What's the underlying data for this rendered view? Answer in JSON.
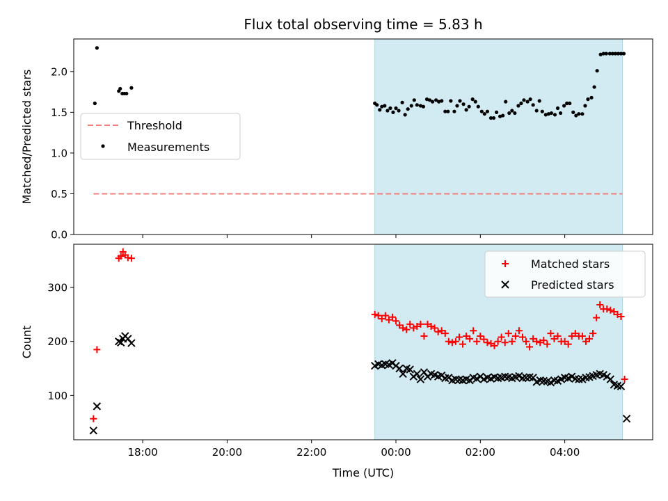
{
  "figure": {
    "title": "Flux total observing time = 5.83 h"
  },
  "colors": {
    "threshold": "#f08080",
    "measurement": "#000000",
    "matched": "#ff0000",
    "predicted": "#000000",
    "shade": "#add8e6"
  },
  "chart_data": [
    {
      "type": "scatter",
      "ylabel": "Matched/Predicted stars",
      "xlabel": "",
      "x_unit": "hours since 17:00 UTC axis reference",
      "xlim": [
        "16:22",
        "06:05"
      ],
      "ylim": [
        0,
        2.4
      ],
      "yticks": [
        "0.0",
        "0.5",
        "1.0",
        "1.5",
        "2.0"
      ],
      "legend": {
        "placement": "center-left",
        "entries": [
          "Threshold",
          "Measurements"
        ]
      },
      "shaded_span": [
        "23:30",
        "05:22"
      ],
      "threshold": {
        "name": "Threshold",
        "y": 0.5,
        "x_start": "16:50",
        "x_end": "05:22"
      },
      "series": [
        {
          "name": "Measurements",
          "x": [
            "16:52",
            "16:55",
            "17:26",
            "17:28",
            "17:31",
            "17:34",
            "17:37",
            "17:44",
            "23:30",
            "23:33",
            "23:37",
            "23:40",
            "23:44",
            "23:48",
            "23:52",
            "23:56",
            "00:00",
            "00:04",
            "00:09",
            "00:13",
            "00:17",
            "00:22",
            "00:26",
            "00:30",
            "00:35",
            "00:39",
            "00:44",
            "00:48",
            "00:52",
            "00:57",
            "01:01",
            "01:05",
            "01:10",
            "01:14",
            "01:18",
            "01:23",
            "01:27",
            "01:31",
            "01:36",
            "01:40",
            "01:44",
            "01:49",
            "01:53",
            "01:57",
            "02:02",
            "02:06",
            "02:10",
            "02:15",
            "02:19",
            "02:23",
            "02:28",
            "02:32",
            "02:36",
            "02:41",
            "02:45",
            "02:49",
            "02:54",
            "02:58",
            "03:02",
            "03:07",
            "03:11",
            "03:15",
            "03:20",
            "03:24",
            "03:28",
            "03:33",
            "03:37",
            "03:41",
            "03:46",
            "03:50",
            "03:54",
            "03:59",
            "04:03",
            "04:07",
            "04:12",
            "04:16",
            "04:20",
            "04:25",
            "04:29",
            "04:33",
            "04:38",
            "04:42",
            "04:46",
            "04:51",
            "04:55",
            "04:59",
            "05:04",
            "05:08",
            "05:12",
            "05:16",
            "05:20",
            "05:24"
          ],
          "y": [
            1.61,
            2.29,
            1.76,
            1.79,
            1.73,
            1.73,
            1.73,
            1.8,
            1.61,
            1.59,
            1.53,
            1.57,
            1.58,
            1.52,
            1.55,
            1.5,
            1.55,
            1.52,
            1.62,
            1.47,
            1.54,
            1.58,
            1.65,
            1.59,
            1.58,
            1.57,
            1.66,
            1.65,
            1.63,
            1.65,
            1.63,
            1.64,
            1.51,
            1.51,
            1.64,
            1.51,
            1.58,
            1.64,
            1.6,
            1.53,
            1.57,
            1.66,
            1.63,
            1.57,
            1.51,
            1.48,
            1.51,
            1.43,
            1.43,
            1.5,
            1.45,
            1.46,
            1.63,
            1.49,
            1.52,
            1.49,
            1.58,
            1.61,
            1.65,
            1.63,
            1.66,
            1.59,
            1.52,
            1.64,
            1.51,
            1.47,
            1.48,
            1.49,
            1.47,
            1.55,
            1.49,
            1.58,
            1.61,
            1.61,
            1.5,
            1.46,
            1.48,
            1.48,
            1.58,
            1.66,
            1.68,
            1.81,
            2.01,
            2.21,
            2.22,
            2.22,
            2.22,
            2.22,
            2.22,
            2.22,
            2.22,
            2.22
          ]
        }
      ]
    },
    {
      "type": "scatter",
      "ylabel": "Count",
      "xlabel": "Time (UTC)",
      "xlim": [
        "16:22",
        "06:05"
      ],
      "ylim": [
        18,
        380
      ],
      "yticks": [
        "100",
        "200",
        "300"
      ],
      "xticks": [
        "18:00",
        "20:00",
        "22:00",
        "00:00",
        "02:00",
        "04:00"
      ],
      "legend": {
        "placement": "top-right",
        "entries": [
          "Matched stars",
          "Predicted stars"
        ]
      },
      "shaded_span": [
        "23:30",
        "05:22"
      ],
      "series": [
        {
          "name": "Matched stars",
          "x": [
            "16:50",
            "16:55",
            "17:26",
            "17:29",
            "17:32",
            "17:35",
            "17:39",
            "17:44",
            "23:30",
            "23:35",
            "23:40",
            "23:45",
            "23:50",
            "23:55",
            "00:00",
            "00:05",
            "00:10",
            "00:15",
            "00:20",
            "00:25",
            "00:30",
            "00:35",
            "00:40",
            "00:45",
            "00:50",
            "00:55",
            "01:00",
            "01:05",
            "01:10",
            "01:15",
            "01:20",
            "01:25",
            "01:30",
            "01:35",
            "01:40",
            "01:45",
            "01:50",
            "01:55",
            "02:00",
            "02:05",
            "02:10",
            "02:15",
            "02:20",
            "02:25",
            "02:30",
            "02:35",
            "02:40",
            "02:45",
            "02:50",
            "02:55",
            "03:00",
            "03:05",
            "03:10",
            "03:15",
            "03:20",
            "03:25",
            "03:30",
            "03:35",
            "03:40",
            "03:45",
            "03:50",
            "03:55",
            "04:00",
            "04:05",
            "04:10",
            "04:15",
            "04:20",
            "04:25",
            "04:30",
            "04:35",
            "04:40",
            "04:45",
            "04:50",
            "04:55",
            "05:00",
            "05:05",
            "05:10",
            "05:15",
            "05:20",
            "05:25"
          ],
          "y": [
            57,
            185,
            354,
            358,
            366,
            360,
            355,
            354,
            250,
            248,
            242,
            248,
            240,
            245,
            238,
            230,
            225,
            222,
            232,
            225,
            228,
            232,
            210,
            232,
            228,
            225,
            218,
            220,
            215,
            200,
            198,
            200,
            208,
            195,
            210,
            205,
            220,
            200,
            210,
            204,
            198,
            196,
            192,
            200,
            208,
            198,
            215,
            200,
            210,
            220,
            208,
            200,
            190,
            205,
            200,
            198,
            202,
            195,
            215,
            205,
            210,
            200,
            200,
            195,
            210,
            215,
            210,
            210,
            200,
            205,
            215,
            244,
            268,
            260,
            260,
            258,
            255,
            250,
            246,
            130
          ],
          "marker": "+"
        },
        {
          "name": "Predicted stars",
          "x": [
            "16:50",
            "16:55",
            "17:26",
            "17:29",
            "17:32",
            "17:35",
            "17:39",
            "17:44",
            "23:30",
            "23:35",
            "23:40",
            "23:45",
            "23:50",
            "23:55",
            "00:00",
            "00:05",
            "00:10",
            "00:15",
            "00:20",
            "00:25",
            "00:30",
            "00:35",
            "00:40",
            "00:45",
            "00:50",
            "00:55",
            "01:00",
            "01:05",
            "01:10",
            "01:15",
            "01:20",
            "01:25",
            "01:30",
            "01:35",
            "01:40",
            "01:45",
            "01:50",
            "01:55",
            "02:00",
            "02:05",
            "02:10",
            "02:15",
            "02:20",
            "02:25",
            "02:30",
            "02:35",
            "02:40",
            "02:45",
            "02:50",
            "02:55",
            "03:00",
            "03:05",
            "03:10",
            "03:15",
            "03:20",
            "03:25",
            "03:30",
            "03:35",
            "03:40",
            "03:45",
            "03:50",
            "03:55",
            "04:00",
            "04:05",
            "04:10",
            "04:15",
            "04:20",
            "04:25",
            "04:30",
            "04:35",
            "04:40",
            "04:45",
            "04:50",
            "04:55",
            "05:00",
            "05:05",
            "05:10",
            "05:15",
            "05:20",
            "05:28"
          ],
          "y": [
            35,
            80,
            200,
            198,
            205,
            210,
            205,
            197,
            155,
            158,
            156,
            158,
            157,
            160,
            155,
            150,
            140,
            150,
            148,
            135,
            140,
            130,
            143,
            135,
            140,
            138,
            135,
            137,
            132,
            133,
            128,
            130,
            129,
            128,
            130,
            128,
            133,
            131,
            135,
            130,
            133,
            131,
            134,
            132,
            133,
            135,
            134,
            132,
            134,
            136,
            132,
            133,
            134,
            133,
            125,
            128,
            127,
            126,
            124,
            128,
            127,
            130,
            133,
            132,
            135,
            131,
            130,
            130,
            133,
            134,
            136,
            138,
            140,
            138,
            135,
            130,
            120,
            118,
            117,
            57
          ],
          "marker": "x"
        }
      ]
    }
  ]
}
